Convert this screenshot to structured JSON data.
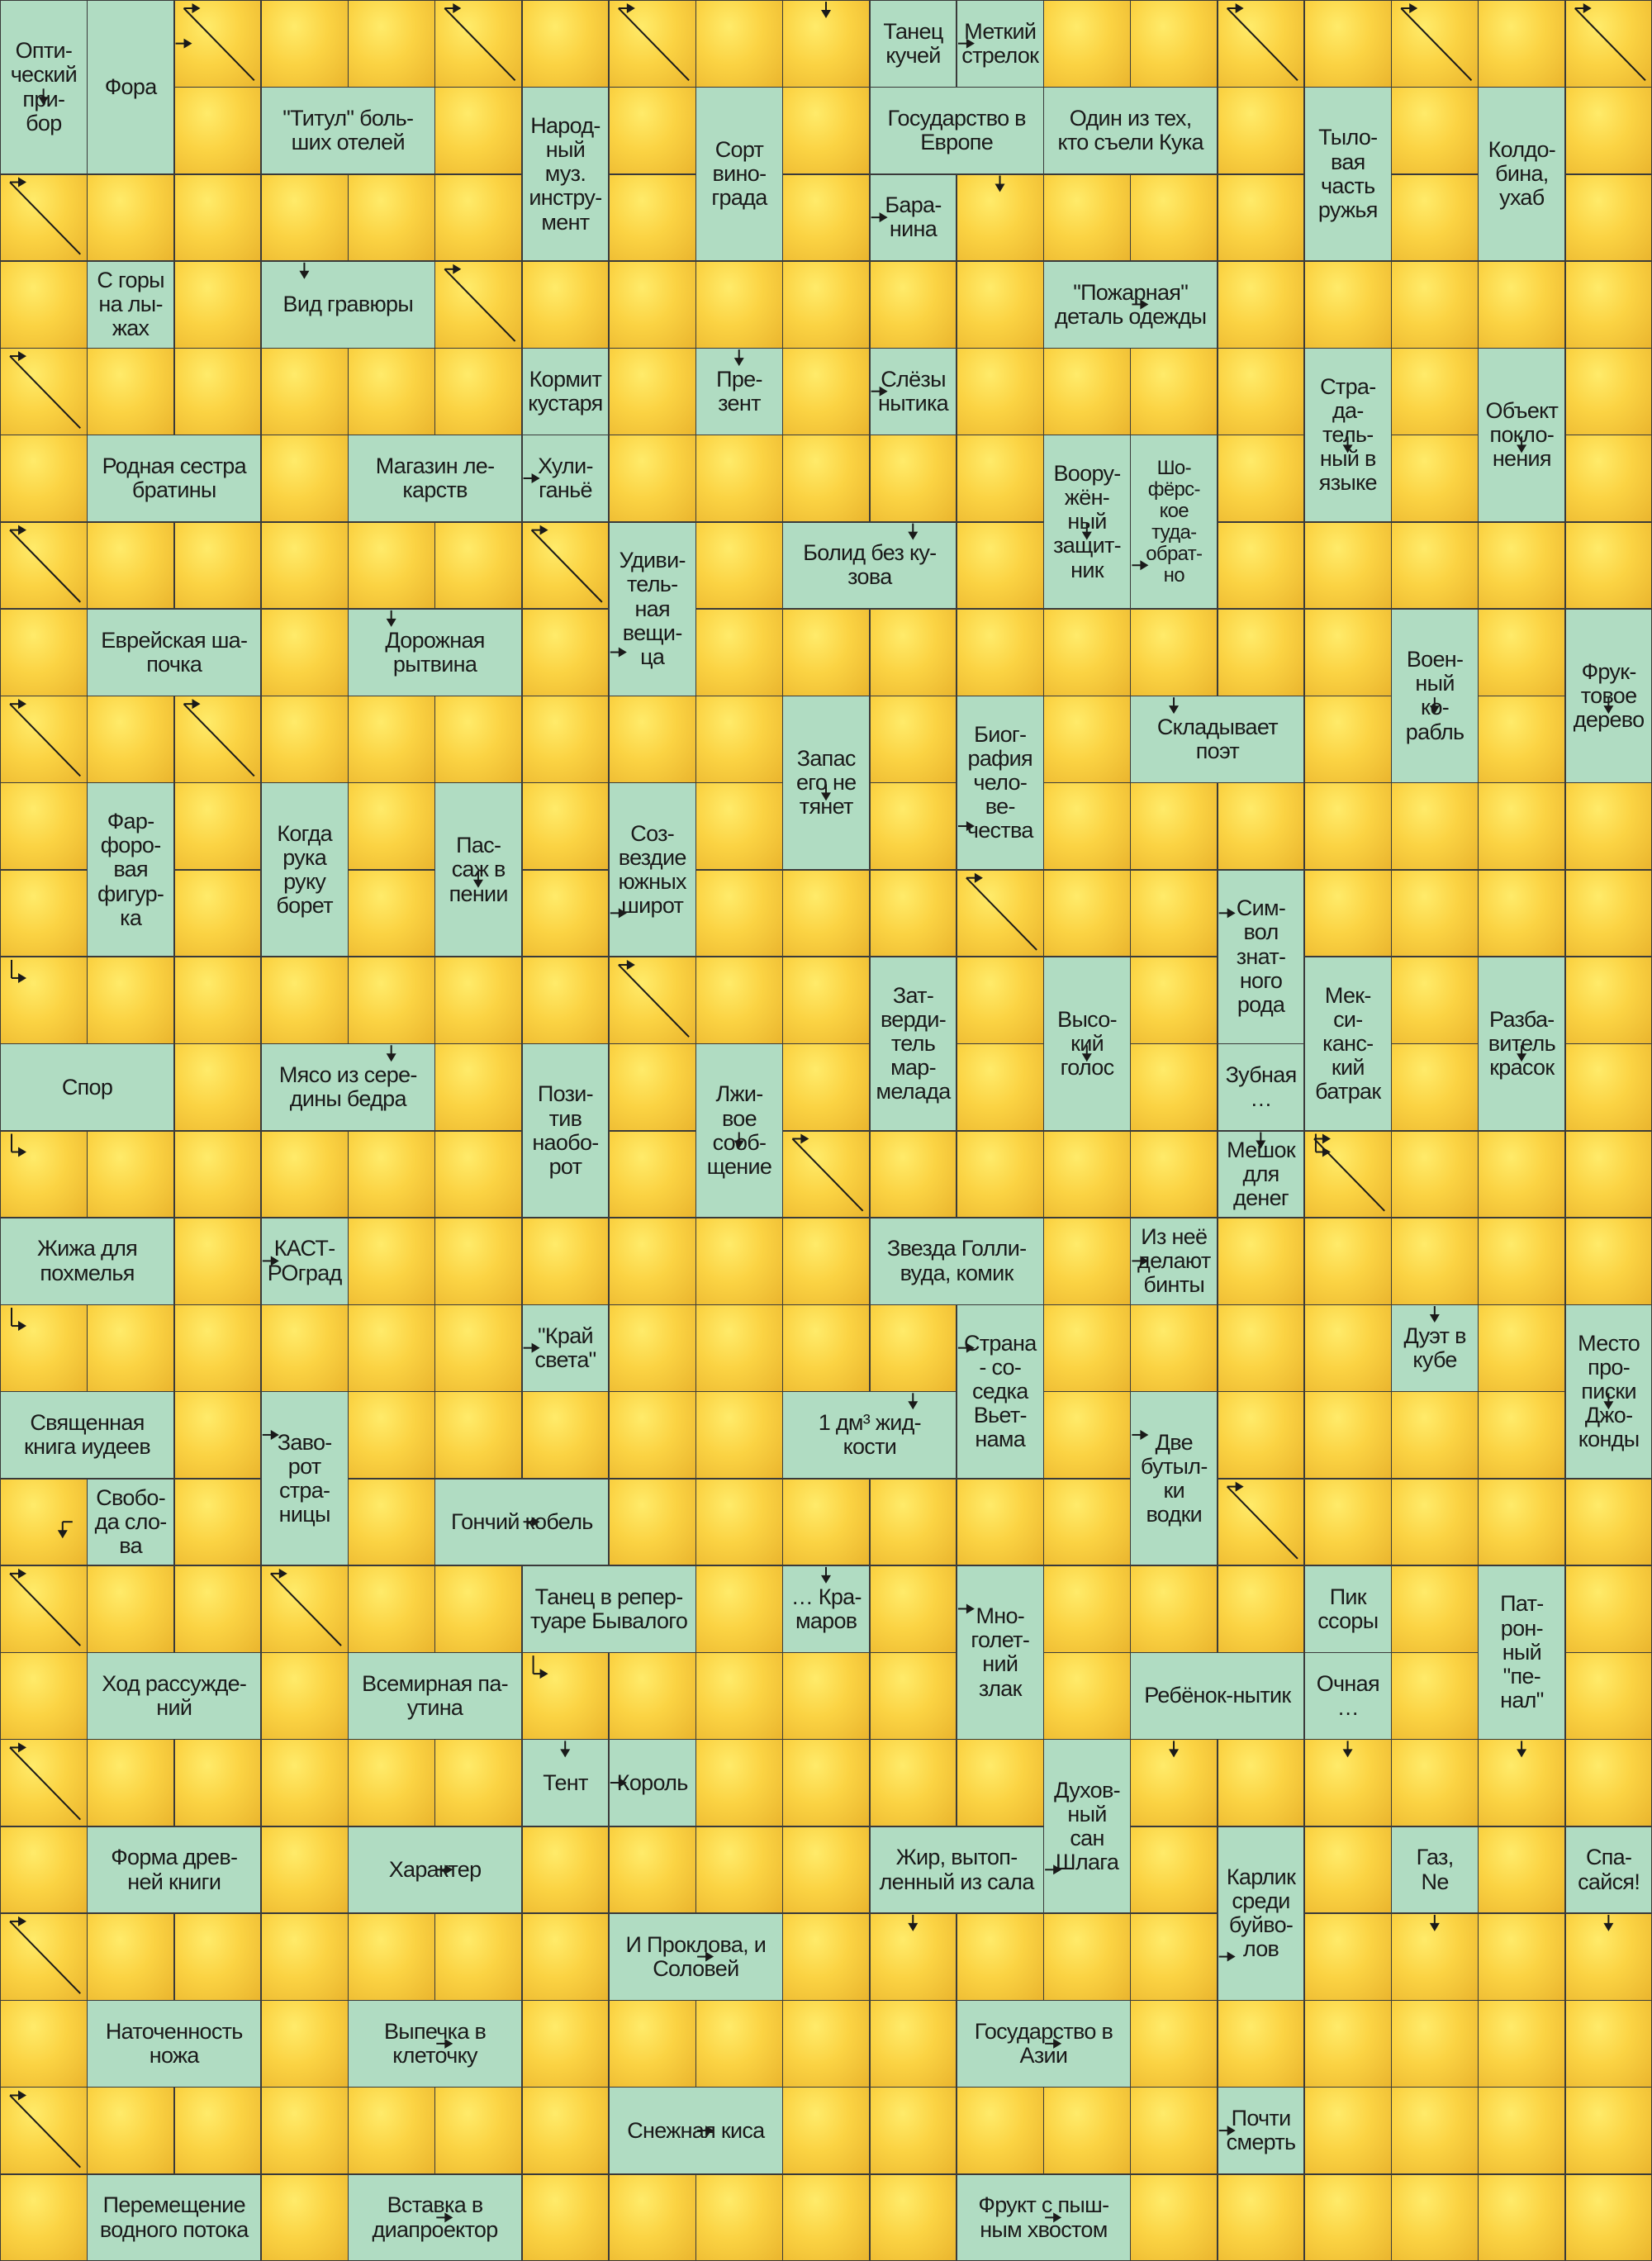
{
  "grid": {
    "rows": 26,
    "cols": 19
  },
  "clues": [
    {
      "r": 0,
      "c": 0,
      "w": 1,
      "h": 2,
      "text": "Опти-\nческий\nпри-\nбор"
    },
    {
      "r": 0,
      "c": 1,
      "w": 1,
      "h": 2,
      "text": "Фора"
    },
    {
      "r": 0,
      "c": 10,
      "w": 1,
      "h": 1,
      "text": "Танец\nкучей"
    },
    {
      "r": 0,
      "c": 11,
      "w": 1,
      "h": 1,
      "text": "Меткий\nстрелок"
    },
    {
      "r": 1,
      "c": 3,
      "w": 2,
      "h": 1,
      "text": "\"Титул\" боль-\nших отелей"
    },
    {
      "r": 1,
      "c": 6,
      "w": 1,
      "h": 2,
      "text": "Народ-\nный\nмуз.\nинстру-\nмент"
    },
    {
      "r": 1,
      "c": 8,
      "w": 1,
      "h": 2,
      "text": "Сорт\nвино-\nграда"
    },
    {
      "r": 1,
      "c": 10,
      "w": 2,
      "h": 1,
      "text": "Государство в\nЕвропе"
    },
    {
      "r": 1,
      "c": 12,
      "w": 2,
      "h": 1,
      "text": "Один из тех,\nкто съели Кука"
    },
    {
      "r": 1,
      "c": 15,
      "w": 1,
      "h": 2,
      "text": "Тыло-\nвая\nчасть\nружья"
    },
    {
      "r": 1,
      "c": 17,
      "w": 1,
      "h": 2,
      "text": "Колдо-\nбина,\nухаб"
    },
    {
      "r": 2,
      "c": 10,
      "w": 1,
      "h": 1,
      "text": "Бара-\nнина"
    },
    {
      "r": 3,
      "c": 1,
      "w": 1,
      "h": 1,
      "text": "С горы\nна лы-\nжах"
    },
    {
      "r": 3,
      "c": 3,
      "w": 2,
      "h": 1,
      "text": "Вид гравюры"
    },
    {
      "r": 3,
      "c": 12,
      "w": 2,
      "h": 1,
      "text": "\"Пожарная\"\nдеталь одежды"
    },
    {
      "r": 4,
      "c": 6,
      "w": 1,
      "h": 1,
      "text": "Кормит\nкустаря"
    },
    {
      "r": 4,
      "c": 8,
      "w": 1,
      "h": 1,
      "text": "Пре-\nзент"
    },
    {
      "r": 4,
      "c": 10,
      "w": 1,
      "h": 1,
      "text": "Слёзы\nнытика"
    },
    {
      "r": 4,
      "c": 15,
      "w": 1,
      "h": 2,
      "text": "Стра-\nда-\nтель-\nный в\nязыке"
    },
    {
      "r": 4,
      "c": 17,
      "w": 1,
      "h": 2,
      "text": "Объект\nпокло-\nнения"
    },
    {
      "r": 5,
      "c": 1,
      "w": 2,
      "h": 1,
      "text": "Родная сестра\nбратины"
    },
    {
      "r": 5,
      "c": 4,
      "w": 2,
      "h": 1,
      "text": "Магазин ле-\nкарств"
    },
    {
      "r": 5,
      "c": 6,
      "w": 1,
      "h": 1,
      "text": "Хули-\nганьё"
    },
    {
      "r": 5,
      "c": 12,
      "w": 1,
      "h": 2,
      "text": "Воору-\nжён-\nный\nзащит-\nник"
    },
    {
      "r": 5,
      "c": 13,
      "w": 1,
      "h": 2,
      "text": "Шо-\nфёрс-\nкое\nтуда-\nобрат-\nно"
    },
    {
      "r": 6,
      "c": 7,
      "w": 1,
      "h": 2,
      "text": "Удиви-\nтель-\nная\nвещи-\nца"
    },
    {
      "r": 6,
      "c": 9,
      "w": 2,
      "h": 1,
      "text": "Болид без ку-\nзова"
    },
    {
      "r": 7,
      "c": 1,
      "w": 2,
      "h": 1,
      "text": "Еврейская ша-\nпочка"
    },
    {
      "r": 7,
      "c": 4,
      "w": 2,
      "h": 1,
      "text": "Дорожная\nрытвина"
    },
    {
      "r": 7,
      "c": 16,
      "w": 1,
      "h": 2,
      "text": "Воен-\nный\nко-\nрабль"
    },
    {
      "r": 7,
      "c": 18,
      "w": 1,
      "h": 2,
      "text": "Фрук-\nтовое\nдерево"
    },
    {
      "r": 8,
      "c": 9,
      "w": 1,
      "h": 2,
      "text": "Запас\nего не\nтянет"
    },
    {
      "r": 8,
      "c": 11,
      "w": 1,
      "h": 2,
      "text": "Биог-\nрафия\nчело-\nве-\nчества"
    },
    {
      "r": 8,
      "c": 13,
      "w": 2,
      "h": 1,
      "text": "Складывает\nпоэт"
    },
    {
      "r": 9,
      "c": 1,
      "w": 1,
      "h": 2,
      "text": "Фар-\nфоро-\nвая\nфигур-\nка"
    },
    {
      "r": 9,
      "c": 3,
      "w": 1,
      "h": 2,
      "text": "Когда\nрука\nруку\nборет"
    },
    {
      "r": 9,
      "c": 5,
      "w": 1,
      "h": 2,
      "text": "Пас-\nсаж в\nпении"
    },
    {
      "r": 9,
      "c": 7,
      "w": 1,
      "h": 2,
      "text": "Соз-\nвездие\nюжных\nширот"
    },
    {
      "r": 10,
      "c": 14,
      "w": 1,
      "h": 2,
      "text": "Сим-\nвол\nзнат-\nного\nрода"
    },
    {
      "r": 11,
      "c": 10,
      "w": 1,
      "h": 2,
      "text": "Зат-\nверди-\nтель\nмар-\nмелада"
    },
    {
      "r": 11,
      "c": 12,
      "w": 1,
      "h": 2,
      "text": "Высо-\nкий\nголос"
    },
    {
      "r": 11,
      "c": 15,
      "w": 1,
      "h": 2,
      "text": "Мек-\nси-\nканс-\nкий\nбатрак"
    },
    {
      "r": 11,
      "c": 17,
      "w": 1,
      "h": 2,
      "text": "Разба-\nвитель\nкрасок"
    },
    {
      "r": 12,
      "c": 0,
      "w": 2,
      "h": 1,
      "text": "Спор"
    },
    {
      "r": 12,
      "c": 3,
      "w": 2,
      "h": 1,
      "text": "Мясо из сере-\nдины бедра"
    },
    {
      "r": 12,
      "c": 6,
      "w": 1,
      "h": 2,
      "text": "Пози-\nтив\nнаобо-\nрот"
    },
    {
      "r": 12,
      "c": 8,
      "w": 1,
      "h": 2,
      "text": "Лжи-\nвое\nсооб-\nщение"
    },
    {
      "r": 12,
      "c": 14,
      "w": 1,
      "h": 1,
      "text": "Зубная\n…"
    },
    {
      "r": 13,
      "c": 14,
      "w": 1,
      "h": 1,
      "text": "Мешок\nдля\nденег"
    },
    {
      "r": 14,
      "c": 0,
      "w": 2,
      "h": 1,
      "text": "Жижа для\nпохмелья"
    },
    {
      "r": 14,
      "c": 3,
      "w": 1,
      "h": 1,
      "text": "КАСТ-\nРОград"
    },
    {
      "r": 14,
      "c": 10,
      "w": 2,
      "h": 1,
      "text": "Звезда Голли-\nвуда, комик"
    },
    {
      "r": 14,
      "c": 13,
      "w": 1,
      "h": 1,
      "text": "Из неё\nделают\nбинты"
    },
    {
      "r": 15,
      "c": 6,
      "w": 1,
      "h": 1,
      "text": "\"Край\nсвета\""
    },
    {
      "r": 15,
      "c": 11,
      "w": 1,
      "h": 2,
      "text": "Страна\n- со-\nседка\nВьет-\nнама"
    },
    {
      "r": 15,
      "c": 16,
      "w": 1,
      "h": 1,
      "text": "Дуэт в\nкубе"
    },
    {
      "r": 15,
      "c": 18,
      "w": 1,
      "h": 2,
      "text": "Место\nпро-\nписки\nДжо-\nконды"
    },
    {
      "r": 16,
      "c": 0,
      "w": 2,
      "h": 1,
      "text": "Священная\nкнига иудеев"
    },
    {
      "r": 16,
      "c": 3,
      "w": 1,
      "h": 2,
      "text": "Заво-\nрот\nстра-\nницы"
    },
    {
      "r": 16,
      "c": 9,
      "w": 2,
      "h": 1,
      "text": "1 дм³ жид-\nкости"
    },
    {
      "r": 16,
      "c": 13,
      "w": 1,
      "h": 2,
      "text": "Две\nбутыл-\nки\nводки"
    },
    {
      "r": 17,
      "c": 1,
      "w": 1,
      "h": 1,
      "text": "Свобо-\nда сло-\nва"
    },
    {
      "r": 17,
      "c": 5,
      "w": 2,
      "h": 1,
      "text": "Гончий кобель"
    },
    {
      "r": 18,
      "c": 6,
      "w": 2,
      "h": 1,
      "text": "Танец в репер-\nтуаре Бывалого"
    },
    {
      "r": 18,
      "c": 9,
      "w": 1,
      "h": 1,
      "text": "… Кра-\nмаров"
    },
    {
      "r": 18,
      "c": 11,
      "w": 1,
      "h": 2,
      "text": "Мно-\nголет-\nний\nзлак"
    },
    {
      "r": 18,
      "c": 15,
      "w": 1,
      "h": 1,
      "text": "Пик\nссоры"
    },
    {
      "r": 18,
      "c": 17,
      "w": 1,
      "h": 2,
      "text": "Пат-\nрон-\nный\n\"пе-\nнал\""
    },
    {
      "r": 19,
      "c": 1,
      "w": 2,
      "h": 1,
      "text": "Ход рассужде-\nний"
    },
    {
      "r": 19,
      "c": 4,
      "w": 2,
      "h": 1,
      "text": "Всемирная па-\nутина"
    },
    {
      "r": 19,
      "c": 13,
      "w": 2,
      "h": 1,
      "text": "Ребёнок-нытик"
    },
    {
      "r": 19,
      "c": 15,
      "w": 1,
      "h": 1,
      "text": "Очная\n…"
    },
    {
      "r": 20,
      "c": 6,
      "w": 1,
      "h": 1,
      "text": "Тент"
    },
    {
      "r": 20,
      "c": 7,
      "w": 1,
      "h": 1,
      "text": "Король"
    },
    {
      "r": 20,
      "c": 12,
      "w": 1,
      "h": 2,
      "text": "Духов-\nный\nсан\nШлага"
    },
    {
      "r": 21,
      "c": 1,
      "w": 2,
      "h": 1,
      "text": "Форма древ-\nней книги"
    },
    {
      "r": 21,
      "c": 4,
      "w": 2,
      "h": 1,
      "text": "Характер"
    },
    {
      "r": 21,
      "c": 10,
      "w": 2,
      "h": 1,
      "text": "Жир, вытоп-\nленный из сала"
    },
    {
      "r": 21,
      "c": 14,
      "w": 1,
      "h": 2,
      "text": "Карлик\nсреди\nбуйво-\nлов"
    },
    {
      "r": 21,
      "c": 16,
      "w": 1,
      "h": 1,
      "text": "Газ,\nNe"
    },
    {
      "r": 21,
      "c": 18,
      "w": 1,
      "h": 1,
      "text": "Спа-\nсайся!"
    },
    {
      "r": 22,
      "c": 7,
      "w": 2,
      "h": 1,
      "text": "И Проклова, и\nСоловей"
    },
    {
      "r": 23,
      "c": 1,
      "w": 2,
      "h": 1,
      "text": "Наточенность\nножа"
    },
    {
      "r": 23,
      "c": 4,
      "w": 2,
      "h": 1,
      "text": "Выпечка в\nклеточку"
    },
    {
      "r": 23,
      "c": 11,
      "w": 2,
      "h": 1,
      "text": "Государство в\nАзии"
    },
    {
      "r": 24,
      "c": 7,
      "w": 2,
      "h": 1,
      "text": "Снежная киса"
    },
    {
      "r": 24,
      "c": 14,
      "w": 1,
      "h": 1,
      "text": "Почти\nсмерть"
    },
    {
      "r": 25,
      "c": 1,
      "w": 2,
      "h": 1,
      "text": "Перемещение\nводного потока"
    },
    {
      "r": 25,
      "c": 4,
      "w": 2,
      "h": 1,
      "text": "Вставка в\nдиапроектор"
    },
    {
      "r": 25,
      "c": 11,
      "w": 2,
      "h": 1,
      "text": "Фрукт с пыш-\nным хвостом"
    }
  ],
  "arrows": [
    {
      "r": 0,
      "c": 2,
      "t": "right"
    },
    {
      "r": 0,
      "c": 2,
      "t": "diag"
    },
    {
      "r": 0,
      "c": 5,
      "t": "diag"
    },
    {
      "r": 0,
      "c": 7,
      "t": "diag"
    },
    {
      "r": 0,
      "c": 9,
      "t": "down"
    },
    {
      "r": 0,
      "c": 11,
      "t": "right"
    },
    {
      "r": 0,
      "c": 14,
      "t": "diag"
    },
    {
      "r": 0,
      "c": 16,
      "t": "diag"
    },
    {
      "r": 0,
      "c": 18,
      "t": "diag"
    },
    {
      "r": 1,
      "c": 0,
      "t": "down"
    },
    {
      "r": 2,
      "c": 0,
      "t": "diag"
    },
    {
      "r": 2,
      "c": 10,
      "t": "right"
    },
    {
      "r": 2,
      "c": 11,
      "t": "down"
    },
    {
      "r": 3,
      "c": 3,
      "t": "down"
    },
    {
      "r": 3,
      "c": 5,
      "t": "diag"
    },
    {
      "r": 3,
      "c": 13,
      "t": "right"
    },
    {
      "r": 4,
      "c": 0,
      "t": "diag"
    },
    {
      "r": 4,
      "c": 10,
      "t": "right"
    },
    {
      "r": 4,
      "c": 8,
      "t": "down"
    },
    {
      "r": 5,
      "c": 6,
      "t": "right"
    },
    {
      "r": 5,
      "c": 15,
      "t": "down"
    },
    {
      "r": 5,
      "c": 17,
      "t": "down"
    },
    {
      "r": 6,
      "c": 0,
      "t": "diag"
    },
    {
      "r": 6,
      "c": 6,
      "t": "diag"
    },
    {
      "r": 6,
      "c": 10,
      "t": "down"
    },
    {
      "r": 6,
      "c": 12,
      "t": "down"
    },
    {
      "r": 6,
      "c": 13,
      "t": "right"
    },
    {
      "r": 7,
      "c": 4,
      "t": "down"
    },
    {
      "r": 7,
      "c": 7,
      "t": "right"
    },
    {
      "r": 8,
      "c": 0,
      "t": "diag"
    },
    {
      "r": 8,
      "c": 2,
      "t": "diag"
    },
    {
      "r": 8,
      "c": 13,
      "t": "down"
    },
    {
      "r": 8,
      "c": 16,
      "t": "down"
    },
    {
      "r": 8,
      "c": 18,
      "t": "down"
    },
    {
      "r": 9,
      "c": 11,
      "t": "right"
    },
    {
      "r": 9,
      "c": 9,
      "t": "down"
    },
    {
      "r": 10,
      "c": 7,
      "t": "right"
    },
    {
      "r": 10,
      "c": 11,
      "t": "diag"
    },
    {
      "r": 10,
      "c": 14,
      "t": "right"
    },
    {
      "r": 10,
      "c": 5,
      "t": "down"
    },
    {
      "r": 11,
      "c": 0,
      "t": "corner"
    },
    {
      "r": 11,
      "c": 7,
      "t": "diag"
    },
    {
      "r": 12,
      "c": 4,
      "t": "down"
    },
    {
      "r": 12,
      "c": 12,
      "t": "down"
    },
    {
      "r": 12,
      "c": 17,
      "t": "down"
    },
    {
      "r": 13,
      "c": 0,
      "t": "corner"
    },
    {
      "r": 13,
      "c": 9,
      "t": "diag"
    },
    {
      "r": 13,
      "c": 15,
      "t": "corner"
    },
    {
      "r": 13,
      "c": 15,
      "t": "diag"
    },
    {
      "r": 13,
      "c": 8,
      "t": "down"
    },
    {
      "r": 13,
      "c": 14,
      "t": "down"
    },
    {
      "r": 14,
      "c": 3,
      "t": "right"
    },
    {
      "r": 14,
      "c": 13,
      "t": "right"
    },
    {
      "r": 15,
      "c": 0,
      "t": "corner"
    },
    {
      "r": 15,
      "c": 6,
      "t": "right"
    },
    {
      "r": 15,
      "c": 11,
      "t": "right"
    },
    {
      "r": 15,
      "c": 16,
      "t": "down"
    },
    {
      "r": 16,
      "c": 3,
      "t": "right"
    },
    {
      "r": 16,
      "c": 13,
      "t": "right"
    },
    {
      "r": 16,
      "c": 10,
      "t": "down"
    },
    {
      "r": 16,
      "c": 18,
      "t": "down"
    },
    {
      "r": 17,
      "c": 0,
      "t": "downleft"
    },
    {
      "r": 17,
      "c": 6,
      "t": "right"
    },
    {
      "r": 17,
      "c": 14,
      "t": "diag"
    },
    {
      "r": 18,
      "c": 0,
      "t": "diag"
    },
    {
      "r": 18,
      "c": 3,
      "t": "diag"
    },
    {
      "r": 18,
      "c": 11,
      "t": "right"
    },
    {
      "r": 18,
      "c": 9,
      "t": "down"
    },
    {
      "r": 19,
      "c": 6,
      "t": "corner"
    },
    {
      "r": 20,
      "c": 0,
      "t": "diag"
    },
    {
      "r": 20,
      "c": 7,
      "t": "right"
    },
    {
      "r": 20,
      "c": 6,
      "t": "down"
    },
    {
      "r": 20,
      "c": 13,
      "t": "down"
    },
    {
      "r": 20,
      "c": 15,
      "t": "down"
    },
    {
      "r": 20,
      "c": 17,
      "t": "down"
    },
    {
      "r": 21,
      "c": 5,
      "t": "right"
    },
    {
      "r": 21,
      "c": 12,
      "t": "right"
    },
    {
      "r": 22,
      "c": 0,
      "t": "diag"
    },
    {
      "r": 22,
      "c": 8,
      "t": "right"
    },
    {
      "r": 22,
      "c": 10,
      "t": "down"
    },
    {
      "r": 22,
      "c": 14,
      "t": "right"
    },
    {
      "r": 22,
      "c": 16,
      "t": "down"
    },
    {
      "r": 22,
      "c": 18,
      "t": "down"
    },
    {
      "r": 23,
      "c": 5,
      "t": "right"
    },
    {
      "r": 23,
      "c": 12,
      "t": "right"
    },
    {
      "r": 24,
      "c": 0,
      "t": "diag"
    },
    {
      "r": 24,
      "c": 8,
      "t": "right"
    },
    {
      "r": 24,
      "c": 14,
      "t": "right"
    },
    {
      "r": 25,
      "c": 5,
      "t": "right"
    },
    {
      "r": 25,
      "c": 12,
      "t": "right"
    }
  ]
}
